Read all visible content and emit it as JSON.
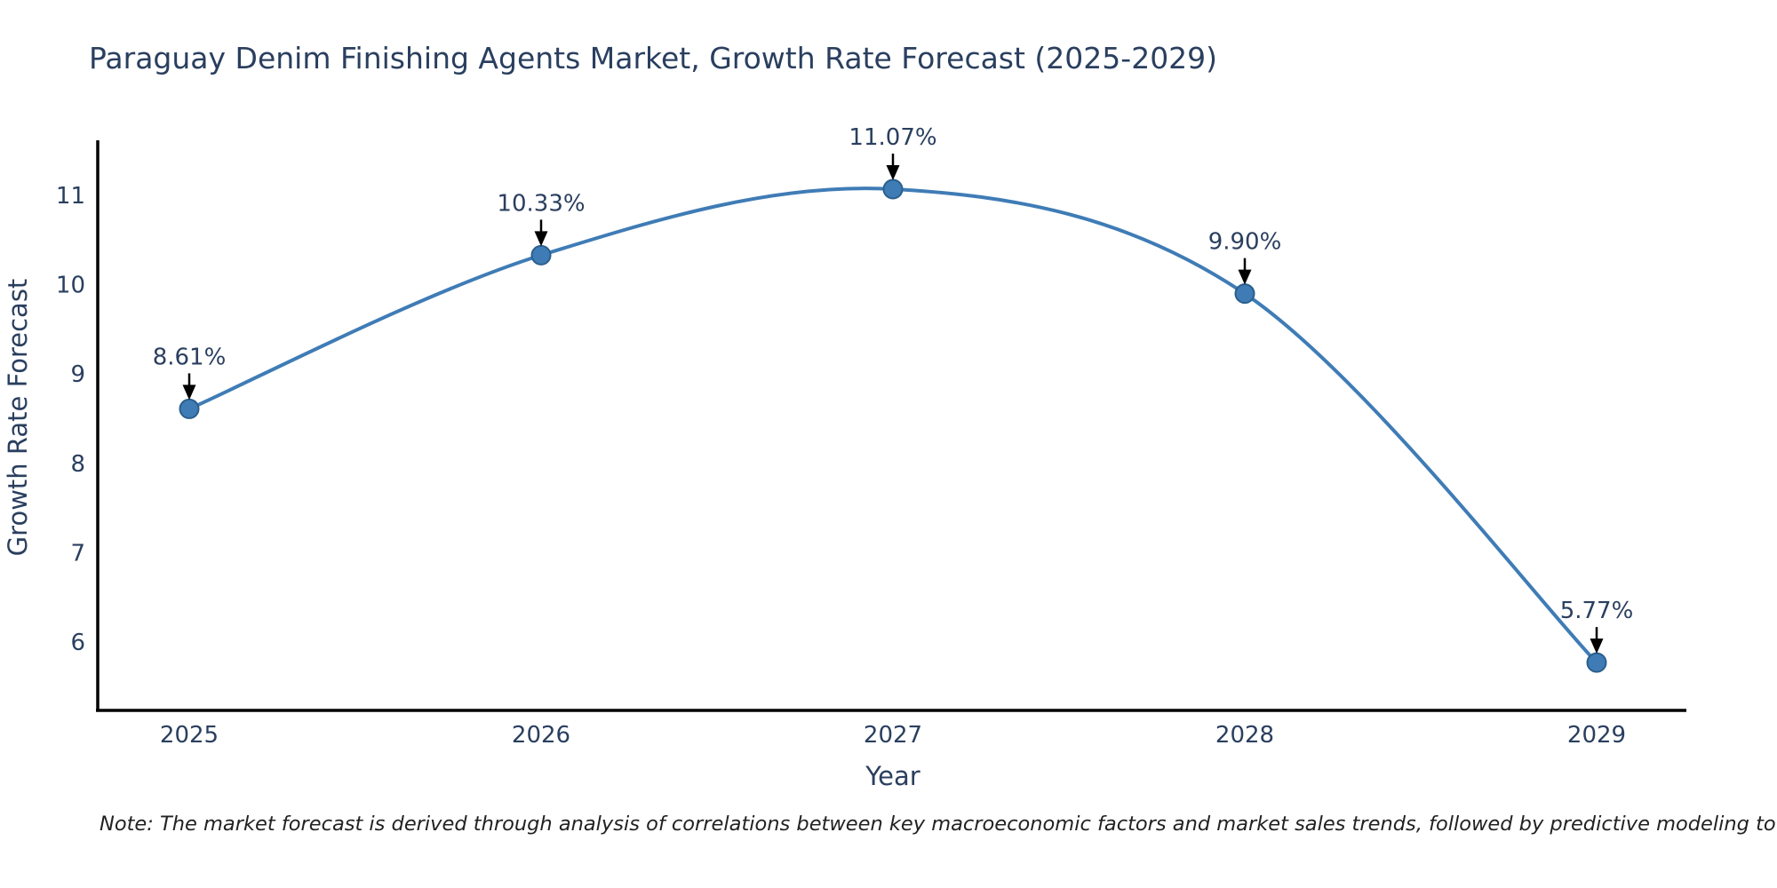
{
  "title": "Paraguay Denim Finishing Agents Market, Growth Rate Forecast (2025-2029)",
  "note": "Note: The market forecast is derived through analysis of correlations between key macroeconomic factors and market sales trends, followed by predictive modeling to project future sales",
  "chart_data": {
    "type": "line",
    "title": "Paraguay Denim Finishing Agents Market, Growth Rate Forecast (2025-2029)",
    "xlabel": "Year",
    "ylabel": "Growth Rate Forecast",
    "x": [
      2025,
      2026,
      2027,
      2028,
      2029
    ],
    "y": [
      8.61,
      10.33,
      11.07,
      9.9,
      5.77
    ],
    "point_labels": [
      "8.61%",
      "10.33%",
      "11.07%",
      "9.90%",
      "5.77%"
    ],
    "xticks": [
      "2025",
      "2026",
      "2027",
      "2028",
      "2029"
    ],
    "yticks": [
      6,
      7,
      8,
      9,
      10,
      11
    ],
    "ylim": [
      5.23,
      11.62
    ],
    "line_shape": "spline",
    "grid": false,
    "legend": "none",
    "annotations_have_arrows": true,
    "colors": {
      "line": "#3f7cb6",
      "marker_fill": "#3f7cb6",
      "marker_border": "#2b5f8c",
      "axis_line": "#000000",
      "tick_text": "#2a3f5f",
      "title_text": "#2a3f5f",
      "annotation_text": "#2a3f5f",
      "annotation_arrow": "#000000",
      "background": "#ffffff"
    }
  }
}
